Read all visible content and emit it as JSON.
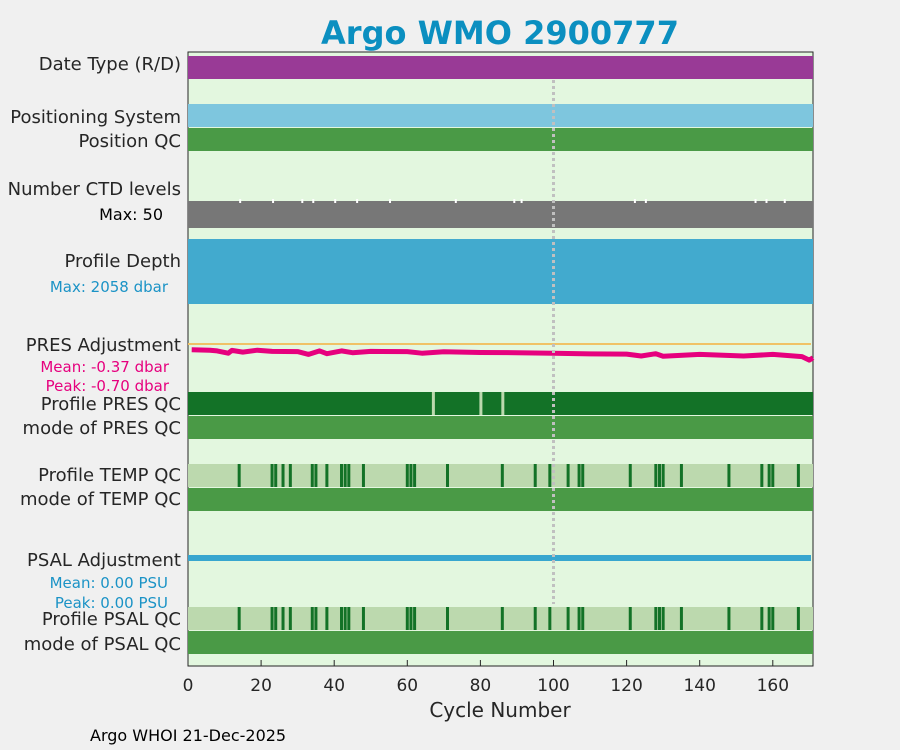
{
  "chart_data": {
    "type": "status-timeline",
    "title": "Argo WMO 2900777",
    "xlabel": "Cycle Number",
    "xlim": [
      0,
      171
    ],
    "xticks": [
      0,
      20,
      40,
      60,
      80,
      100,
      120,
      140,
      160
    ],
    "marker_cycle": 100,
    "last_cycle": 171,
    "rows": {
      "date_type": "Date Type (R/D)",
      "positioning_system": "Positioning System",
      "position_qc": "Position QC",
      "ctd_levels": "Number CTD levels",
      "ctd_max": "Max: 50",
      "profile_depth": "Profile Depth",
      "depth_max": "Max: 2058 dbar",
      "pres_adjustment": "PRES Adjustment",
      "pres_mean": "Mean: -0.37 dbar",
      "pres_peak": "Peak: -0.70 dbar",
      "profile_pres_qc": "Profile PRES QC",
      "mode_pres_qc": "mode of PRES QC",
      "profile_temp_qc": "Profile TEMP QC",
      "mode_temp_qc": "mode of TEMP QC",
      "psal_adjustment": "PSAL Adjustment",
      "psal_mean": "Mean: 0.00 PSU",
      "psal_peak": "Peak: 0.00 PSU",
      "profile_psal_qc": "Profile PSAL QC",
      "mode_psal_qc": "mode of PSAL QC"
    },
    "ctd_gap_cycles": [
      14,
      23,
      31,
      34,
      40,
      46,
      55,
      73,
      89,
      91,
      122,
      125,
      155,
      158,
      163
    ],
    "pres_qc_gap_cycles": [
      67,
      80,
      86
    ],
    "qc_flag_cycles": [
      14,
      23,
      24,
      26,
      28,
      34,
      35,
      38,
      42,
      43,
      44,
      48,
      60,
      61,
      62,
      71,
      86,
      95,
      99,
      104,
      107,
      108,
      121,
      128,
      129,
      130,
      135,
      148,
      157,
      159,
      160,
      167
    ],
    "pres_adjustment_values": [
      {
        "cycle": 1,
        "dbar": -0.25
      },
      {
        "cycle": 6,
        "dbar": -0.27
      },
      {
        "cycle": 8,
        "dbar": -0.3
      },
      {
        "cycle": 11,
        "dbar": -0.4
      },
      {
        "cycle": 12,
        "dbar": -0.28
      },
      {
        "cycle": 15,
        "dbar": -0.35
      },
      {
        "cycle": 19,
        "dbar": -0.27
      },
      {
        "cycle": 23,
        "dbar": -0.32
      },
      {
        "cycle": 30,
        "dbar": -0.33
      },
      {
        "cycle": 33,
        "dbar": -0.45
      },
      {
        "cycle": 36,
        "dbar": -0.3
      },
      {
        "cycle": 38,
        "dbar": -0.42
      },
      {
        "cycle": 42,
        "dbar": -0.3
      },
      {
        "cycle": 45,
        "dbar": -0.38
      },
      {
        "cycle": 50,
        "dbar": -0.32
      },
      {
        "cycle": 60,
        "dbar": -0.33
      },
      {
        "cycle": 64,
        "dbar": -0.4
      },
      {
        "cycle": 70,
        "dbar": -0.34
      },
      {
        "cycle": 80,
        "dbar": -0.37
      },
      {
        "cycle": 90,
        "dbar": -0.38
      },
      {
        "cycle": 100,
        "dbar": -0.4
      },
      {
        "cycle": 110,
        "dbar": -0.43
      },
      {
        "cycle": 120,
        "dbar": -0.44
      },
      {
        "cycle": 124,
        "dbar": -0.52
      },
      {
        "cycle": 128,
        "dbar": -0.42
      },
      {
        "cycle": 130,
        "dbar": -0.53
      },
      {
        "cycle": 140,
        "dbar": -0.45
      },
      {
        "cycle": 152,
        "dbar": -0.52
      },
      {
        "cycle": 160,
        "dbar": -0.45
      },
      {
        "cycle": 168,
        "dbar": -0.55
      },
      {
        "cycle": 170,
        "dbar": -0.7
      },
      {
        "cycle": 171,
        "dbar": -0.6
      }
    ],
    "psal_adjustment_values": [
      {
        "cycle": 1,
        "psu": 0.0
      },
      {
        "cycle": 171,
        "psu": 0.0
      }
    ]
  },
  "colors": {
    "title": "#0b8fc0",
    "panel_bg": "#e3f7df",
    "date_type": "#993a96",
    "positioning": "#7ec6de",
    "qc_green": "#4a9a46",
    "qc_dark_green": "#137227",
    "qc_light": "#bcd9ae",
    "ctd_gray": "#777777",
    "depth_blue": "#42aace",
    "pres_pink": "#e6007e",
    "pres_ref": "#f0c266",
    "psal_blue": "#38a6cf"
  },
  "footer": "Argo WHOI 21-Dec-2025"
}
